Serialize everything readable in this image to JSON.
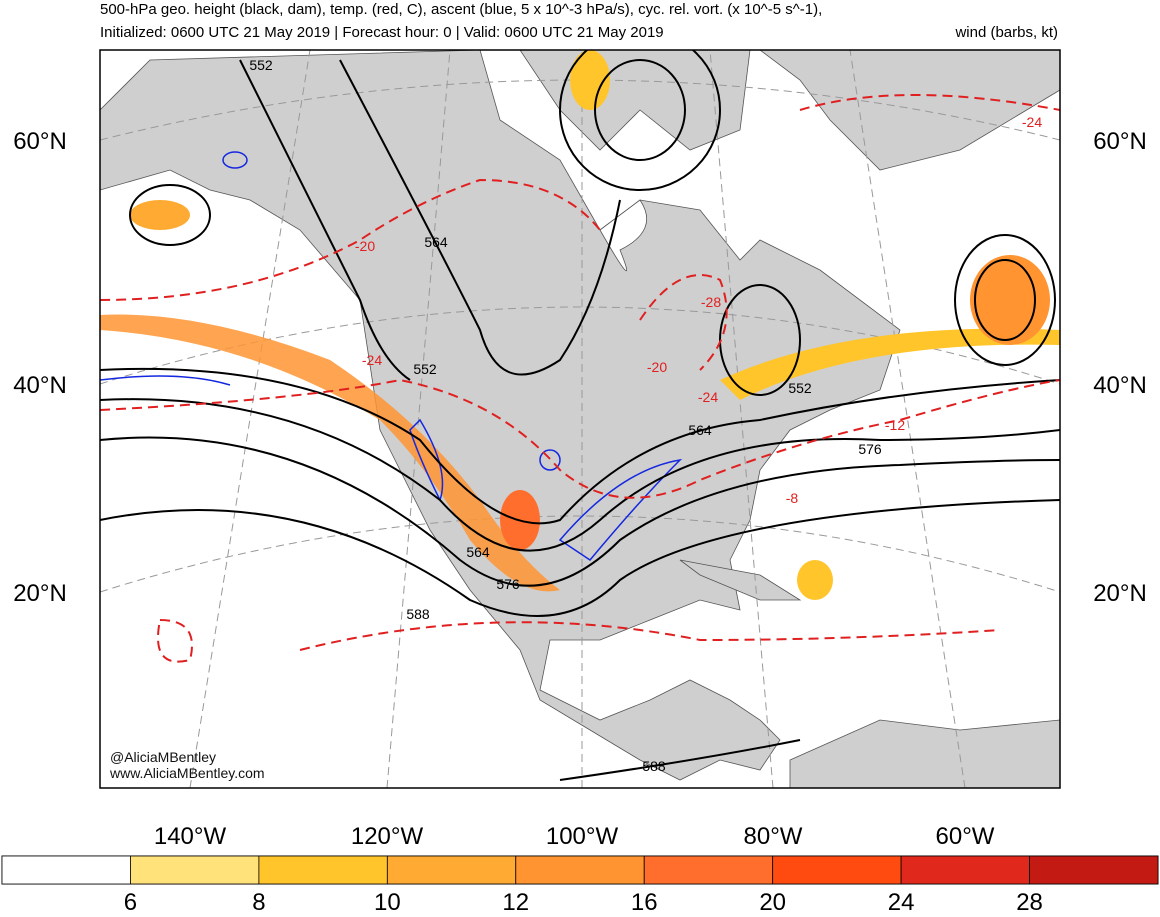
{
  "header": {
    "title": "500-hPa geo. height (black, dam), temp. (red, C), ascent (blue, 5 x 10^-3 hPa/s), cyc. rel. vort. (x 10^-5 s^-1),",
    "subtitle": "Initialized: 0600 UTC 21 May 2019 | Forecast hour: 0 | Valid: 0600 UTC 21 May 2019",
    "subtitle_right": "wind (barbs, kt)"
  },
  "map": {
    "lat_labels": [
      "60°N",
      "40°N",
      "20°N"
    ],
    "lon_labels": [
      "140°W",
      "120°W",
      "100°W",
      "80°W",
      "60°W"
    ],
    "height_labels": [
      "552",
      "564",
      "552",
      "564",
      "552",
      "576",
      "564",
      "576",
      "588",
      "588"
    ],
    "temp_labels": [
      "-20",
      "-24",
      "-28",
      "-20",
      "-24",
      "-12",
      "-8",
      "-24"
    ],
    "credit": [
      "@AliciaMBentley",
      "www.AliciaMBentley.com"
    ]
  },
  "colorbar": {
    "ticks": [
      6,
      8,
      10,
      12,
      16,
      20,
      24,
      28
    ],
    "colors": [
      "#ffffff",
      "#ffe27a",
      "#ffc52b",
      "#ffaa33",
      "#ff9431",
      "#ff6e2c",
      "#ff4a10",
      "#e0281c",
      "#c41a14"
    ]
  }
}
